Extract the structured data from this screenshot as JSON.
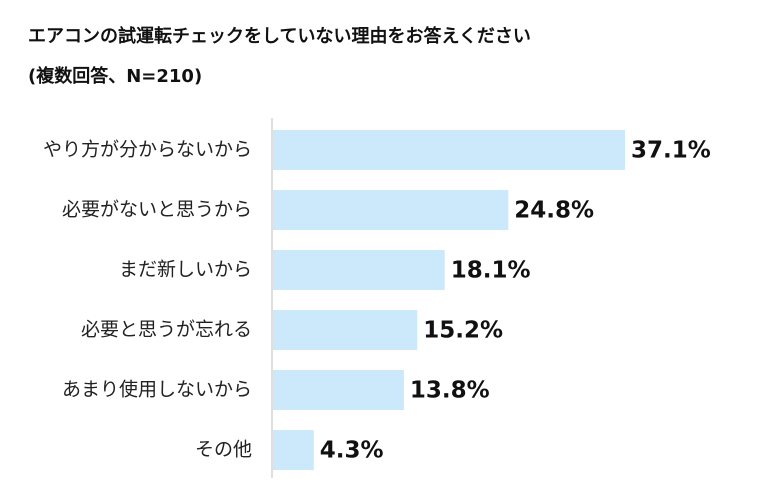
{
  "chart_data": {
    "type": "bar",
    "orientation": "horizontal",
    "title": "エアコンの試運転チェックをしていない理由をお答えください",
    "subtitle": "(複数回答、N=210)",
    "categories": [
      "やり方が分からないから",
      "必要がないと思うから",
      "まだ新しいから",
      "必要と思うが忘れる",
      "あまり使用しないから",
      "その他"
    ],
    "values": [
      37.1,
      24.8,
      18.1,
      15.2,
      13.8,
      4.3
    ],
    "value_labels": [
      "37.1%",
      "24.8%",
      "18.1%",
      "15.2%",
      "13.8%",
      "4.3%"
    ],
    "xlim": [
      0,
      40
    ],
    "grid": false,
    "legend": "none",
    "bar_color": "#cce9fb",
    "axis_color": "#bfbfbf"
  }
}
